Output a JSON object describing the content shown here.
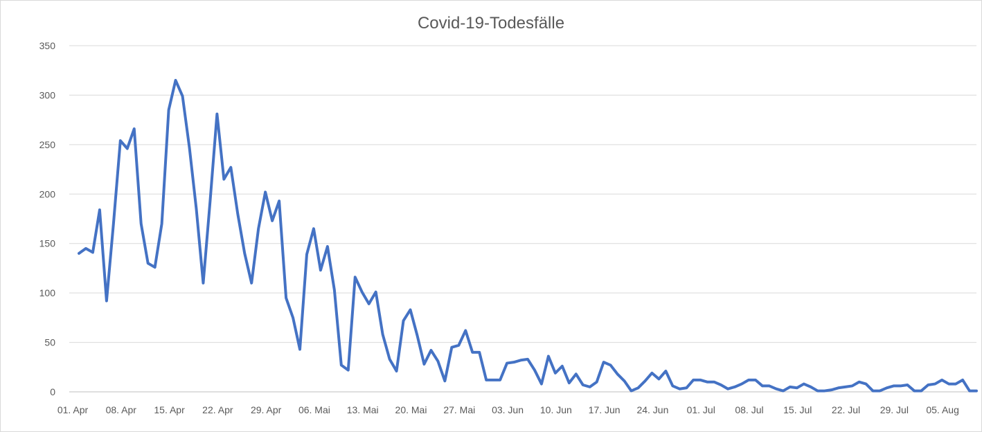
{
  "chart_data": {
    "type": "line",
    "title": "Covid-19-Todesfälle",
    "xlabel": "",
    "ylabel": "",
    "ylim": [
      0,
      350
    ],
    "yticks": [
      "0",
      "50",
      "100",
      "150",
      "200",
      "250",
      "300",
      "350"
    ],
    "grid": true,
    "legend": "none",
    "line_color": "#4472C4",
    "x_tick_labels": [
      "01. Apr",
      "08. Apr",
      "15. Apr",
      "22. Apr",
      "29. Apr",
      "06. Mai",
      "13. Mai",
      "20. Mai",
      "27. Mai",
      "03. Jun",
      "10. Jun",
      "17. Jun",
      "24. Jun",
      "01. Jul",
      "08. Jul",
      "15. Jul",
      "22. Jul",
      "29. Jul",
      "05. Aug"
    ],
    "x_start": "01. Apr",
    "x_end": "10. Aug",
    "series": [
      {
        "values": [
          140,
          145,
          141,
          184,
          92,
          170,
          254,
          246,
          266,
          170,
          130,
          126,
          170,
          285,
          315,
          299,
          247,
          185,
          110,
          193,
          281,
          215,
          227,
          180,
          140,
          110,
          165,
          202,
          173,
          193,
          95,
          75,
          43,
          139,
          165,
          123,
          147,
          103,
          27,
          22,
          116,
          101,
          89,
          101,
          58,
          33,
          21,
          72,
          83,
          57,
          28,
          42,
          31,
          11,
          45,
          47,
          62,
          40,
          40,
          12,
          12,
          12,
          29,
          30,
          32,
          33,
          22,
          8,
          36,
          19,
          26,
          9,
          18,
          7,
          5,
          10,
          30,
          27,
          18,
          11,
          1,
          4,
          11,
          19,
          13,
          21,
          6,
          3,
          4,
          12,
          12,
          10,
          10,
          7,
          3,
          5,
          8,
          12,
          12,
          6,
          6,
          3,
          1,
          5,
          4,
          8,
          5,
          1,
          1,
          2,
          4,
          5,
          6,
          10,
          8,
          1,
          1,
          4,
          6,
          6,
          7,
          1,
          1,
          7,
          8,
          12,
          8,
          8,
          12,
          1,
          1
        ]
      }
    ]
  }
}
